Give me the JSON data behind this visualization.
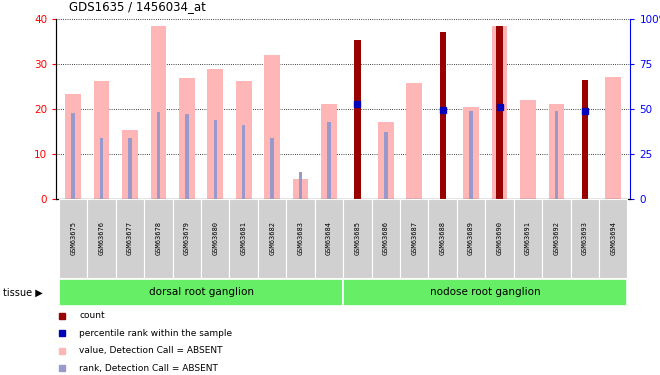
{
  "title": "GDS1635 / 1456034_at",
  "samples": [
    "GSM63675",
    "GSM63676",
    "GSM63677",
    "GSM63678",
    "GSM63679",
    "GSM63680",
    "GSM63681",
    "GSM63682",
    "GSM63683",
    "GSM63684",
    "GSM63685",
    "GSM63686",
    "GSM63687",
    "GSM63688",
    "GSM63689",
    "GSM63690",
    "GSM63691",
    "GSM63692",
    "GSM63693",
    "GSM63694"
  ],
  "value_pink": [
    23.3,
    26.1,
    15.2,
    38.5,
    26.8,
    28.9,
    26.1,
    32.0,
    4.5,
    21.0,
    null,
    17.0,
    25.8,
    null,
    20.5,
    38.5,
    22.0,
    21.0,
    null,
    27.0
  ],
  "rank_blue": [
    19.0,
    13.5,
    13.5,
    19.2,
    18.8,
    17.5,
    16.5,
    13.5,
    6.0,
    17.0,
    null,
    14.8,
    null,
    null,
    19.5,
    20.5,
    null,
    19.5,
    null,
    null
  ],
  "count_red": [
    null,
    null,
    null,
    null,
    null,
    null,
    null,
    null,
    null,
    null,
    35.2,
    null,
    null,
    37.0,
    null,
    38.5,
    null,
    null,
    26.5,
    null
  ],
  "prank_blue_sq": [
    null,
    null,
    null,
    null,
    null,
    null,
    null,
    null,
    null,
    null,
    21.0,
    null,
    null,
    19.8,
    null,
    20.5,
    null,
    null,
    19.5,
    null
  ],
  "ylim_left": [
    0,
    40
  ],
  "ylim_right": [
    0,
    100
  ],
  "color_pink": "#ffb6b6",
  "color_lightblue": "#9999cc",
  "color_darkred": "#990000",
  "color_blue": "#0000bb",
  "tissue_groups": [
    {
      "label": "dorsal root ganglion",
      "start": 0,
      "end": 9
    },
    {
      "label": "nodose root ganglion",
      "start": 10,
      "end": 19
    }
  ],
  "tissue_color": "#66ee66"
}
